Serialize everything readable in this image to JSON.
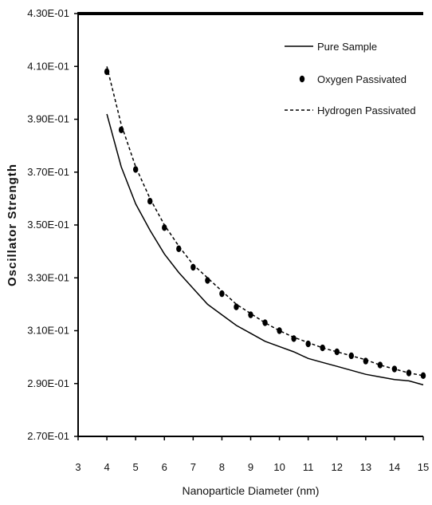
{
  "chart_data": {
    "type": "line",
    "title": "",
    "xlabel": "Nanoparticle Diameter (nm)",
    "ylabel": "Oscillator Strength",
    "xlim": [
      3,
      15
    ],
    "ylim": [
      0.27,
      0.43
    ],
    "x_ticks": [
      "3",
      "4",
      "5",
      "6",
      "7",
      "8",
      "9",
      "10",
      "11",
      "12",
      "13",
      "14",
      "15"
    ],
    "y_ticks": [
      "2.70E-01",
      "2.90E-01",
      "3.10E-01",
      "3.30E-01",
      "3.50E-01",
      "3.70E-01",
      "3.90E-01",
      "4.10E-01",
      "4.30E-01"
    ],
    "grid": false,
    "legend_position": "top-right",
    "series": [
      {
        "name": "Pure Sample",
        "style": "solid",
        "color": "#000000",
        "x": [
          4,
          4.5,
          5,
          5.5,
          6,
          6.5,
          7,
          7.5,
          8,
          8.5,
          9,
          9.5,
          10,
          10.5,
          11,
          11.5,
          12,
          12.5,
          13,
          13.5,
          14,
          14.5,
          15
        ],
        "values": [
          0.392,
          0.372,
          0.358,
          0.348,
          0.339,
          0.332,
          0.326,
          0.32,
          0.316,
          0.312,
          0.309,
          0.306,
          0.304,
          0.302,
          0.2995,
          0.298,
          0.2965,
          0.295,
          0.2935,
          0.2925,
          0.2915,
          0.291,
          0.2895
        ]
      },
      {
        "name": "Oxygen Passivated",
        "style": "markers",
        "color": "#000000",
        "x": [
          4,
          4.5,
          5,
          5.5,
          6,
          6.5,
          7,
          7.5,
          8,
          8.5,
          9,
          9.5,
          10,
          10.5,
          11,
          11.5,
          12,
          12.5,
          13,
          13.5,
          14,
          14.5,
          15
        ],
        "values": [
          0.408,
          0.386,
          0.371,
          0.359,
          0.349,
          0.341,
          0.334,
          0.329,
          0.324,
          0.319,
          0.316,
          0.313,
          0.31,
          0.307,
          0.305,
          0.3035,
          0.302,
          0.3005,
          0.2985,
          0.297,
          0.2955,
          0.294,
          0.293
        ]
      },
      {
        "name": "Hydrogen Passivated",
        "style": "dashed",
        "color": "#000000",
        "x": [
          4,
          4.5,
          5,
          5.5,
          6,
          6.5,
          7,
          7.5,
          8,
          8.5,
          9,
          9.5,
          10,
          10.5,
          11,
          11.5,
          12,
          12.5,
          13,
          13.5,
          14,
          14.5,
          15
        ],
        "values": [
          0.41,
          0.388,
          0.372,
          0.36,
          0.35,
          0.342,
          0.335,
          0.33,
          0.325,
          0.32,
          0.3165,
          0.313,
          0.31,
          0.3075,
          0.3055,
          0.3035,
          0.302,
          0.3005,
          0.299,
          0.297,
          0.2955,
          0.294,
          0.293
        ]
      }
    ]
  }
}
